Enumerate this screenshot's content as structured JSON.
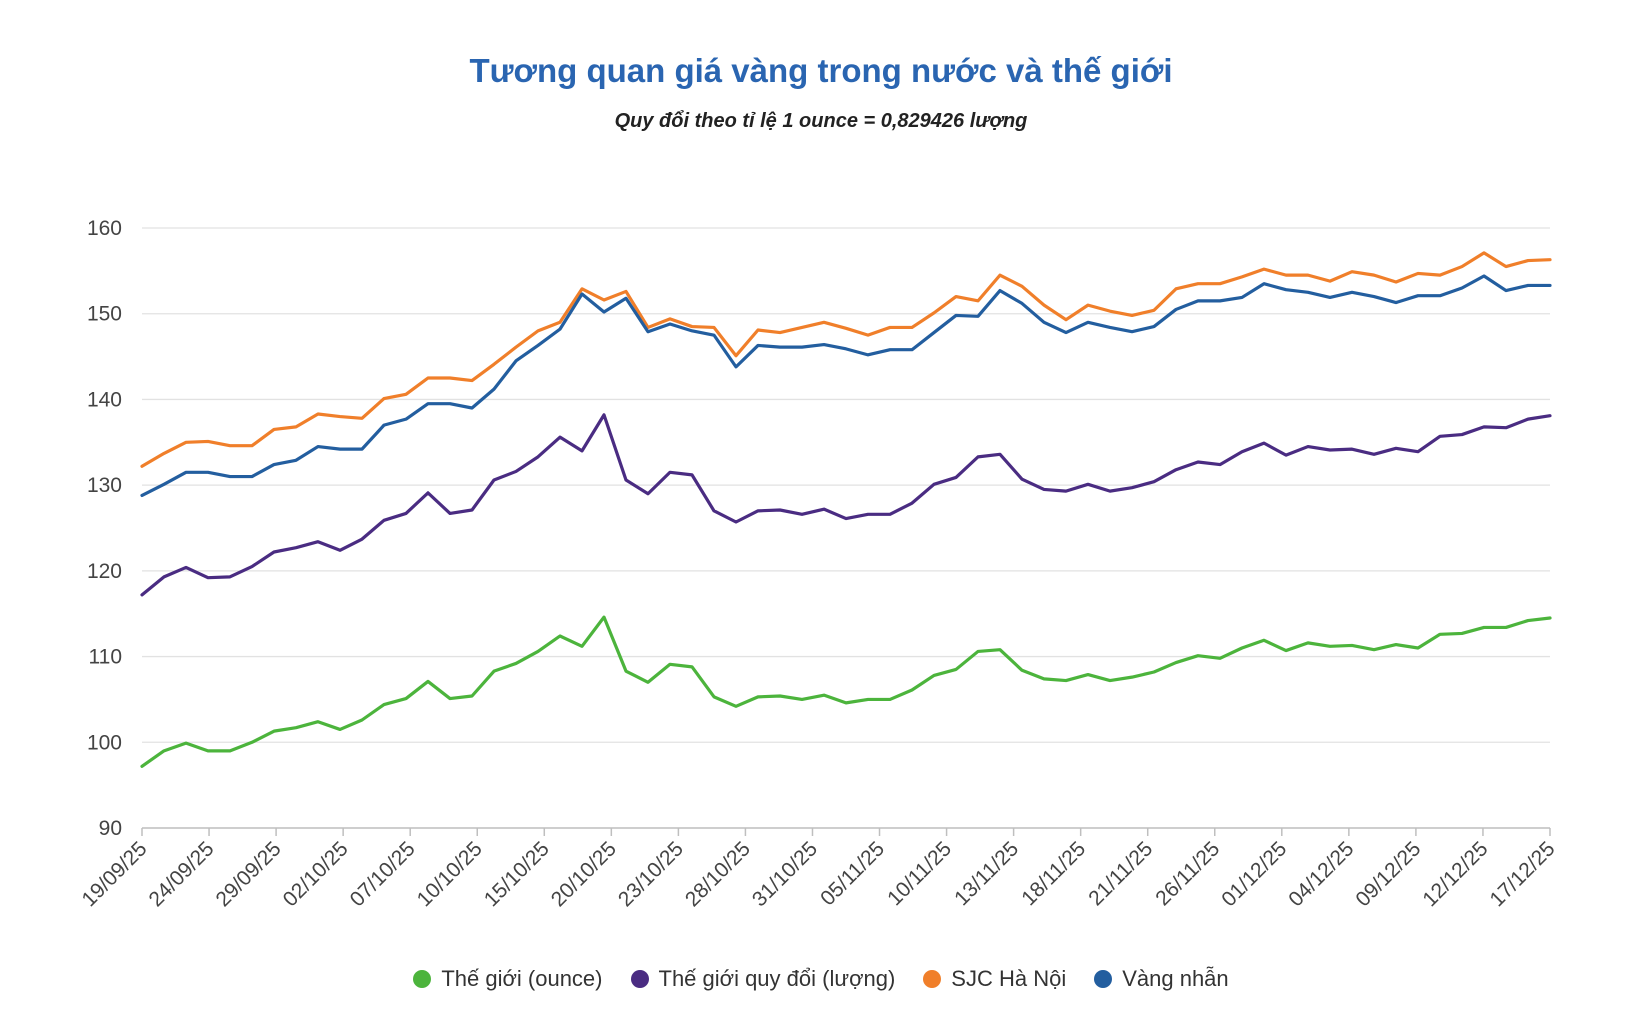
{
  "chart_data": {
    "type": "line",
    "title": "Tương quan giá vàng trong nước và thế giới",
    "subtitle": "Quy đổi theo tỉ lệ 1 ounce = 0,829426 lượng",
    "xlabel": "",
    "ylabel": "",
    "ylim": [
      90,
      160
    ],
    "yticks": [
      90,
      100,
      110,
      120,
      130,
      140,
      150,
      160
    ],
    "grid": true,
    "legend_position": "bottom",
    "x_tick_labels": [
      "19/09/25",
      "24/09/25",
      "29/09/25",
      "02/10/25",
      "07/10/25",
      "10/10/25",
      "15/10/25",
      "20/10/25",
      "23/10/25",
      "28/10/25",
      "31/10/25",
      "05/11/25",
      "10/11/25",
      "13/11/25",
      "18/11/25",
      "21/11/25",
      "26/11/25",
      "01/12/25",
      "04/12/25",
      "09/12/25",
      "12/12/25",
      "17/12/25"
    ],
    "series": [
      {
        "name": "Thế giới (ounce)",
        "color": "#4cb43c",
        "values": [
          97.2,
          99.0,
          99.9,
          99.0,
          99.0,
          100.0,
          101.3,
          101.7,
          102.4,
          101.5,
          102.6,
          104.4,
          105.1,
          107.1,
          105.1,
          105.4,
          108.3,
          109.2,
          110.6,
          112.4,
          111.2,
          114.6,
          108.3,
          107.0,
          109.1,
          108.8,
          105.3,
          104.2,
          105.3,
          105.4,
          105.0,
          105.5,
          104.6,
          105.0,
          105.0,
          106.1,
          107.8,
          108.5,
          110.6,
          110.8,
          108.4,
          107.4,
          107.2,
          107.9,
          107.2,
          107.6,
          108.2,
          109.3,
          110.1,
          109.8,
          111.0,
          111.9,
          110.7,
          111.6,
          111.2,
          111.3,
          110.8,
          111.4,
          111.0,
          112.6,
          112.7,
          113.4,
          113.4,
          114.2,
          114.5
        ]
      },
      {
        "name": "Thế giới quy đổi (lượng)",
        "color": "#4a2c82",
        "values": [
          117.2,
          119.3,
          120.4,
          119.2,
          119.3,
          120.5,
          122.2,
          122.7,
          123.4,
          122.4,
          123.7,
          125.9,
          126.7,
          129.1,
          126.7,
          127.1,
          130.6,
          131.6,
          133.3,
          135.6,
          134.0,
          138.2,
          130.6,
          129.0,
          131.5,
          131.2,
          127.0,
          125.7,
          127.0,
          127.1,
          126.6,
          127.2,
          126.1,
          126.6,
          126.6,
          127.9,
          130.1,
          130.9,
          133.3,
          133.6,
          130.7,
          129.5,
          129.3,
          130.1,
          129.3,
          129.7,
          130.4,
          131.8,
          132.7,
          132.4,
          133.9,
          134.9,
          133.5,
          134.5,
          134.1,
          134.2,
          133.6,
          134.3,
          133.9,
          135.7,
          135.9,
          136.8,
          136.7,
          137.7,
          138.1
        ]
      },
      {
        "name": "SJC Hà Nội",
        "color": "#f07f2a",
        "values": [
          132.2,
          133.7,
          135.0,
          135.1,
          134.6,
          134.6,
          136.5,
          136.8,
          138.3,
          138.0,
          137.8,
          140.1,
          140.6,
          142.5,
          142.5,
          142.2,
          144.1,
          146.1,
          148.0,
          149.0,
          152.9,
          151.6,
          152.6,
          148.4,
          149.4,
          148.5,
          148.4,
          145.1,
          148.1,
          147.8,
          148.4,
          149.0,
          148.3,
          147.5,
          148.4,
          148.4,
          150.1,
          152.0,
          151.5,
          154.5,
          153.2,
          151.0,
          149.3,
          151.0,
          150.3,
          149.8,
          150.4,
          152.9,
          153.5,
          153.5,
          154.3,
          155.2,
          154.5,
          154.5,
          153.8,
          154.9,
          154.5,
          153.7,
          154.7,
          154.5,
          155.5,
          157.1,
          155.5,
          156.2,
          156.3
        ]
      },
      {
        "name": "Vàng nhẫn",
        "color": "#235e9f",
        "values": [
          128.8,
          130.1,
          131.5,
          131.5,
          131.0,
          131.0,
          132.4,
          132.9,
          134.5,
          134.2,
          134.2,
          137.0,
          137.7,
          139.5,
          139.5,
          139.0,
          141.2,
          144.5,
          146.3,
          148.2,
          152.3,
          150.2,
          151.8,
          147.9,
          148.8,
          148.0,
          147.5,
          143.8,
          146.3,
          146.1,
          146.1,
          146.4,
          145.9,
          145.2,
          145.8,
          145.8,
          147.8,
          149.8,
          149.7,
          152.7,
          151.2,
          149.0,
          147.8,
          149.0,
          148.4,
          147.9,
          148.5,
          150.5,
          151.5,
          151.5,
          151.9,
          153.5,
          152.8,
          152.5,
          151.9,
          152.5,
          152.0,
          151.3,
          152.1,
          152.1,
          153.0,
          154.4,
          152.7,
          153.3,
          153.3
        ]
      }
    ]
  }
}
